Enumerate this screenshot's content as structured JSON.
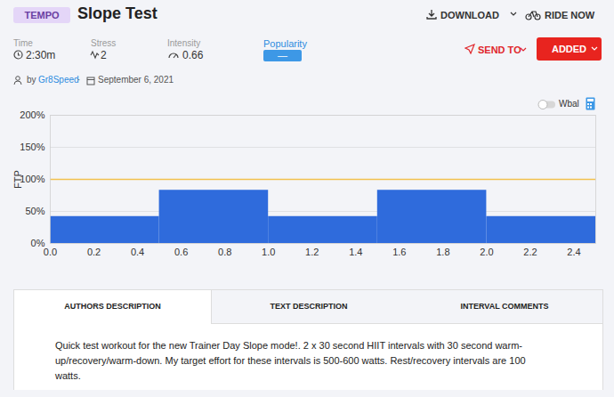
{
  "header": {
    "badge": "TEMPO",
    "title": "Slope Test",
    "actions": [
      "DOWNLOAD",
      "RIDE NOW"
    ]
  },
  "stats": [
    {
      "label": "Time",
      "value": "2:30m"
    },
    {
      "label": "Stress",
      "value": "2"
    },
    {
      "label": "Intensity",
      "value": "0.66"
    },
    {
      "label": "Popularity",
      "value": "—"
    }
  ],
  "buttons": [
    "SEND TO",
    "ADDED"
  ],
  "author": {
    "prefix": "by",
    "name": "Gr8Speed",
    "separator": "·",
    "date": "September 6, 2021"
  },
  "toggle": "Wbal",
  "chart_data": {
    "type": "bar",
    "bins": [
      0,
      0.5,
      1,
      1.5,
      2,
      2.5
    ],
    "values": [
      42,
      83,
      42,
      83,
      42
    ],
    "color": "#2f6bdc",
    "xlim": [
      0,
      2.5
    ],
    "xticks": [
      {
        "value": 0,
        "label": "0.0"
      },
      0.2,
      0.4,
      0.6,
      0.8,
      {
        "value": 1,
        "label": "1.0"
      },
      1.2,
      1.4,
      1.6,
      1.8,
      {
        "value": 2,
        "label": "2.0"
      },
      2.2,
      2.4
    ],
    "ylim": [
      0,
      200
    ],
    "yticks": [
      {
        "value": 0,
        "label": "0%"
      },
      {
        "value": 50,
        "label": "50%"
      },
      {
        "value": 100,
        "label": "100%"
      },
      {
        "value": 150,
        "label": "150%"
      },
      {
        "value": 200,
        "label": "200%"
      }
    ],
    "ylabel": "FTP",
    "ftp_line": 100,
    "grid": true
  },
  "tabs": [
    "AUTHORS DESCRIPTION",
    "TEXT DESCRIPTION",
    "INTERVAL COMMENTS"
  ],
  "description": "Quick test workout for the new Trainer Day Slope mode!. 2 x 30 second HIIT intervals with 30 second warm-up/recovery/warm-down.  My target effort for these intervals is 500-600 watts. Rest/recovery intervals are 100 watts."
}
